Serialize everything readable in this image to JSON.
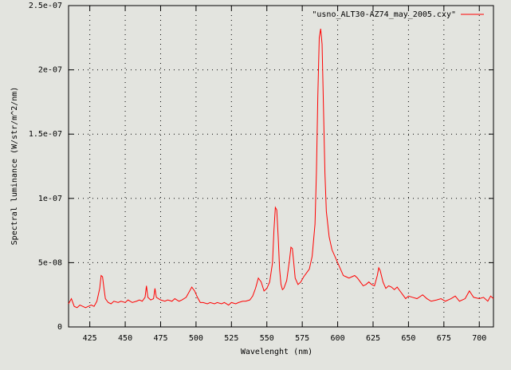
{
  "chart_data": {
    "type": "line",
    "xlabel": "Wavelenght (nm)",
    "ylabel": "Spectral luminance (W/str/m^2/nm)",
    "xlim": [
      410,
      710
    ],
    "xticks": [
      425,
      450,
      475,
      500,
      525,
      550,
      575,
      600,
      625,
      650,
      675,
      700
    ],
    "ylim": [
      0,
      2.5e-07
    ],
    "yticks": [
      0,
      {
        "value": 5e-08,
        "label": "5e-08"
      },
      {
        "value": 1e-07,
        "label": "1e-07"
      },
      {
        "value": 1.5e-07,
        "label": "1.5e-07"
      },
      {
        "value": 2e-07,
        "label": "2e-07"
      },
      {
        "value": 2.5e-07,
        "label": "2.5e-07"
      }
    ],
    "grid": true,
    "legend": "top-right",
    "x": [
      410,
      412,
      414,
      416,
      418,
      420,
      422,
      424,
      426,
      428,
      430,
      432,
      433,
      434,
      435,
      436,
      438,
      440,
      442,
      445,
      447,
      450,
      452,
      455,
      458,
      460,
      462,
      464,
      465,
      466,
      468,
      470,
      471,
      472,
      475,
      478,
      480,
      483,
      485,
      488,
      490,
      493,
      495,
      497,
      499,
      501,
      503,
      505,
      508,
      510,
      513,
      515,
      518,
      520,
      523,
      525,
      528,
      530,
      533,
      535,
      538,
      540,
      542,
      544,
      546,
      548,
      550,
      552,
      554,
      555,
      556,
      557,
      558,
      559,
      560,
      561,
      562,
      564,
      566,
      567,
      568,
      569,
      570,
      572,
      574,
      576,
      578,
      580,
      582,
      584,
      585,
      586,
      587,
      588,
      589,
      590,
      591,
      592,
      594,
      596,
      598,
      600,
      602,
      604,
      606,
      608,
      610,
      612,
      614,
      616,
      618,
      620,
      622,
      624,
      626,
      628,
      629,
      630,
      632,
      634,
      636,
      638,
      640,
      642,
      644,
      646,
      648,
      650,
      653,
      656,
      660,
      663,
      666,
      670,
      673,
      676,
      680,
      683,
      686,
      690,
      693,
      696,
      700,
      703,
      706,
      708,
      710
    ],
    "series": [
      {
        "name": "\"usno_ALT30-AZ74_may_2005.cxy\"",
        "color": "#ff0000",
        "values": [
          1.8e-08,
          2.2e-08,
          1.6e-08,
          1.5e-08,
          1.7e-08,
          1.6e-08,
          1.5e-08,
          1.6e-08,
          1.7e-08,
          1.6e-08,
          2e-08,
          3e-08,
          4e-08,
          3.9e-08,
          3e-08,
          2.2e-08,
          1.9e-08,
          1.8e-08,
          2e-08,
          1.9e-08,
          2e-08,
          1.9e-08,
          2.1e-08,
          1.9e-08,
          2e-08,
          2.1e-08,
          2e-08,
          2.3e-08,
          3.2e-08,
          2.3e-08,
          2.1e-08,
          2.2e-08,
          3e-08,
          2.3e-08,
          2.1e-08,
          2e-08,
          2.1e-08,
          2e-08,
          2.2e-08,
          2e-08,
          2.1e-08,
          2.3e-08,
          2.7e-08,
          3.1e-08,
          2.8e-08,
          2.3e-08,
          1.9e-08,
          1.9e-08,
          1.8e-08,
          1.9e-08,
          1.8e-08,
          1.9e-08,
          1.8e-08,
          1.9e-08,
          1.7e-08,
          1.9e-08,
          1.8e-08,
          1.9e-08,
          2e-08,
          2e-08,
          2.1e-08,
          2.4e-08,
          3e-08,
          3.8e-08,
          3.5e-08,
          2.8e-08,
          3e-08,
          3.5e-08,
          5e-08,
          7.5e-08,
          9.3e-08,
          9.1e-08,
          7e-08,
          4.5e-08,
          3.3e-08,
          2.9e-08,
          3e-08,
          3.6e-08,
          5.2e-08,
          6.2e-08,
          6.1e-08,
          5e-08,
          3.8e-08,
          3.3e-08,
          3.5e-08,
          3.9e-08,
          4.2e-08,
          4.5e-08,
          5.5e-08,
          8e-08,
          1.2e-07,
          1.8e-07,
          2.25e-07,
          2.32e-07,
          2.2e-07,
          1.7e-07,
          1.2e-07,
          9e-08,
          7e-08,
          6e-08,
          5.5e-08,
          5e-08,
          4.5e-08,
          4e-08,
          3.9e-08,
          3.8e-08,
          3.9e-08,
          4e-08,
          3.8e-08,
          3.5e-08,
          3.2e-08,
          3.3e-08,
          3.5e-08,
          3.3e-08,
          3.2e-08,
          4e-08,
          4.6e-08,
          4.4e-08,
          3.5e-08,
          3e-08,
          3.2e-08,
          3.1e-08,
          2.9e-08,
          3.1e-08,
          2.8e-08,
          2.5e-08,
          2.2e-08,
          2.4e-08,
          2.3e-08,
          2.2e-08,
          2.5e-08,
          2.2e-08,
          2e-08,
          2.1e-08,
          2.2e-08,
          2e-08,
          2.2e-08,
          2.4e-08,
          2e-08,
          2.2e-08,
          2.8e-08,
          2.3e-08,
          2.2e-08,
          2.3e-08,
          2e-08,
          2.4e-08,
          2.2e-08
        ]
      }
    ]
  }
}
